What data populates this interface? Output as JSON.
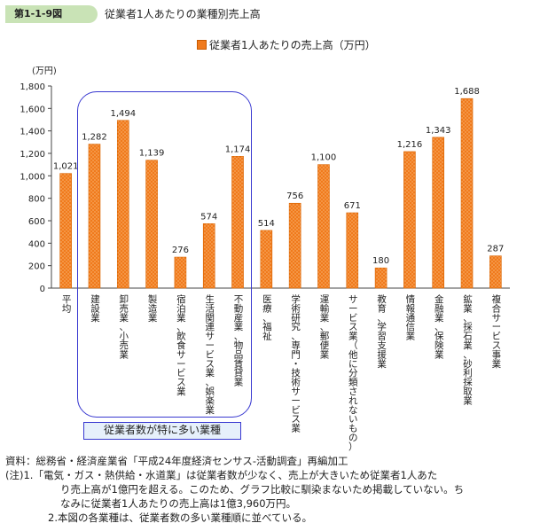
{
  "header": {
    "figure_number": "第1-1-9図",
    "title": "従業者1人あたりの業種別売上高"
  },
  "highlight_label": "従業者数が特に多い業種",
  "notes": {
    "source": "資料：総務省・経済産業省「平成24年度経済センサス-活動調査」再編加工",
    "note1_line1": "(注)1.「電気・ガス・熱供給・水道業」は従業者数が少なく、売上が大きいため従業者1人あた",
    "note1_line2": "り売上高が1億円を超える。このため、グラフ比較に馴染まないため掲載していない。ち",
    "note1_line3": "なみに従業者1人あたりの売上高は1億3,960万円。",
    "note2": "2.本図の各業種は、従業者数の多い業種順に並べている。"
  },
  "chart_data": {
    "type": "bar",
    "legend_position": "top-center",
    "ylabel": "(万円)",
    "ylim": [
      0,
      1800
    ],
    "yticks": [
      0,
      200,
      400,
      600,
      800,
      1000,
      1200,
      1400,
      1600,
      1800
    ],
    "ytick_labels": [
      "0",
      "200",
      "400",
      "600",
      "800",
      "1,000",
      "1,200",
      "1,400",
      "1,600",
      "1,800"
    ],
    "bar_color": "#f07a1c",
    "highlight_color": "#3838d0",
    "categories": [
      "平均",
      "建設業",
      "卸売業、小売業",
      "製造業",
      "宿泊業、飲食サービス業",
      "生活関連サービス業、娯楽業",
      "不動産業、物品賃貸業",
      "医療、福祉",
      "学術研究、専門・技術サービス業",
      "運輸業、郵便業",
      "サービス業（他に分類されないもの）",
      "教育、学習支援業",
      "情報通信業",
      "金融業、保険業",
      "鉱業、採石業、砂利採取業",
      "複合サービス事業"
    ],
    "series": [
      {
        "name": "従業者1人あたりの売上高（万円）",
        "values": [
          1021,
          1282,
          1494,
          1139,
          276,
          574,
          1174,
          514,
          756,
          1100,
          671,
          180,
          1216,
          1343,
          1688,
          287
        ],
        "value_labels": [
          "1,021",
          "1,282",
          "1,494",
          "1,139",
          "276",
          "574",
          "1,174",
          "514",
          "756",
          "1,100",
          "671",
          "180",
          "1,216",
          "1,343",
          "1,688",
          "287"
        ]
      }
    ]
  }
}
